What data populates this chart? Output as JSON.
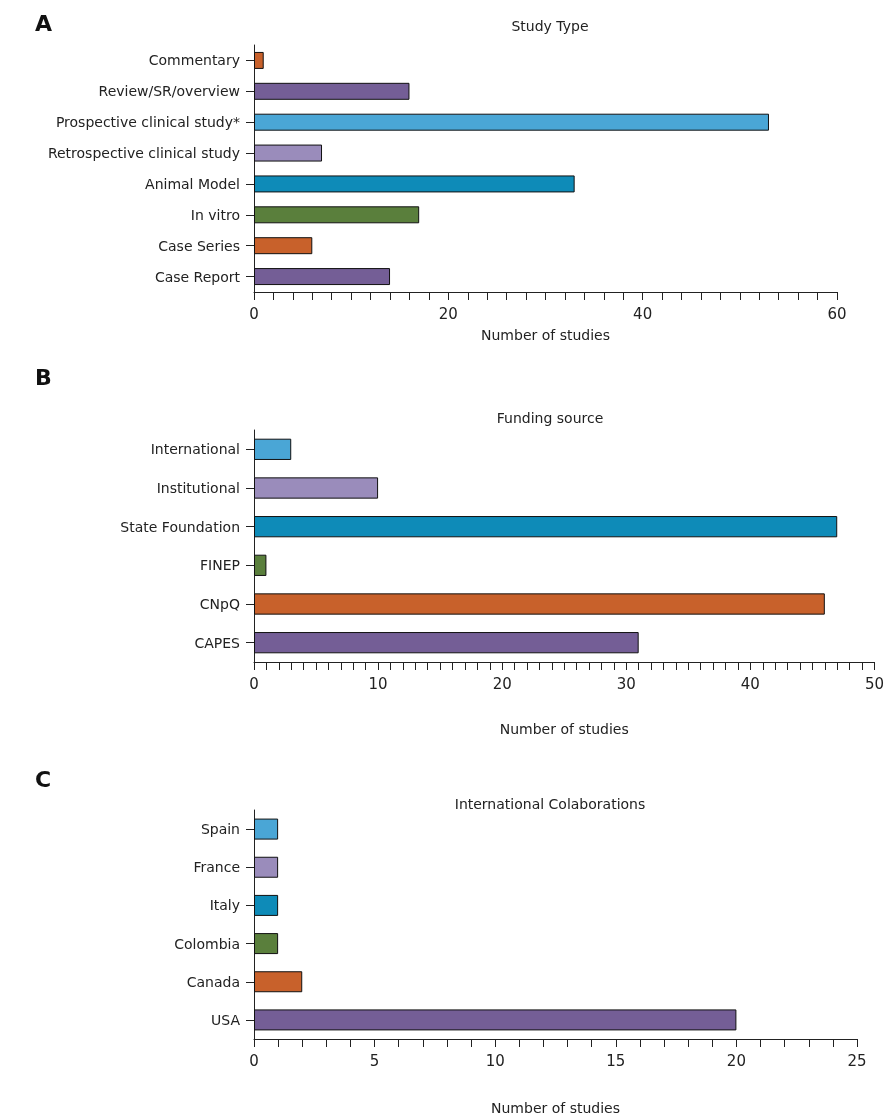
{
  "chart_data": [
    {
      "type": "bar",
      "orientation": "horizontal",
      "title": "Study Type",
      "xlabel": "Number of studies",
      "annotations": [
        "A"
      ],
      "categories": [
        "Commentary",
        "Review/SR/overview",
        "Prospective clinical study*",
        "Retrospective clinical study",
        "Animal Model",
        "In vitro",
        "Case Series",
        "Case Report"
      ],
      "values": [
        1,
        16,
        53,
        7,
        33,
        17,
        6,
        14
      ],
      "colors": [
        "#c8612b",
        "#745e96",
        "#4aa6d6",
        "#9a8cbb",
        "#0e8bb8",
        "#5a7f3c",
        "#c8612b",
        "#745e96"
      ],
      "xlim": [
        0,
        60
      ],
      "xticks": [
        0,
        {
          "value": 2,
          "label": null
        },
        {
          "value": 4,
          "label": null
        },
        {
          "value": 6,
          "label": null
        },
        {
          "value": 8,
          "label": null
        },
        {
          "value": 10,
          "label": null
        },
        {
          "value": 12,
          "label": null
        },
        {
          "value": 14,
          "label": null
        },
        {
          "value": 16,
          "label": null
        },
        {
          "value": 18,
          "label": null
        },
        20,
        {
          "value": 22,
          "label": null
        },
        {
          "value": 24,
          "label": null
        },
        {
          "value": 26,
          "label": null
        },
        {
          "value": 28,
          "label": null
        },
        {
          "value": 30,
          "label": null
        },
        {
          "value": 32,
          "label": null
        },
        {
          "value": 34,
          "label": null
        },
        {
          "value": 36,
          "label": null
        },
        {
          "value": 38,
          "label": null
        },
        40,
        {
          "value": 42,
          "label": null
        },
        {
          "value": 44,
          "label": null
        },
        {
          "value": 46,
          "label": null
        },
        {
          "value": 48,
          "label": null
        },
        {
          "value": 50,
          "label": null
        },
        {
          "value": 52,
          "label": null
        },
        {
          "value": 54,
          "label": null
        },
        {
          "value": 56,
          "label": null
        },
        {
          "value": 58,
          "label": null
        },
        60
      ],
      "grid": false
    },
    {
      "type": "bar",
      "orientation": "horizontal",
      "title": "Funding source",
      "xlabel": "Number of studies",
      "annotations": [
        "B"
      ],
      "categories": [
        "International",
        "Institutional",
        "State Foundation",
        "FINEP",
        "CNpQ",
        "CAPES"
      ],
      "values": [
        3,
        10,
        47,
        1,
        46,
        31
      ],
      "colors": [
        "#4aa6d6",
        "#9a8cbb",
        "#0e8bb8",
        "#5a7f3c",
        "#c8612b",
        "#745e96"
      ],
      "xlim": [
        0,
        50
      ],
      "xticks": [
        0,
        {
          "value": 1,
          "label": null
        },
        {
          "value": 2,
          "label": null
        },
        {
          "value": 3,
          "label": null
        },
        {
          "value": 4,
          "label": null
        },
        {
          "value": 5,
          "label": null
        },
        {
          "value": 6,
          "label": null
        },
        {
          "value": 7,
          "label": null
        },
        {
          "value": 8,
          "label": null
        },
        {
          "value": 9,
          "label": null
        },
        10,
        {
          "value": 11,
          "label": null
        },
        {
          "value": 12,
          "label": null
        },
        {
          "value": 13,
          "label": null
        },
        {
          "value": 14,
          "label": null
        },
        {
          "value": 15,
          "label": null
        },
        {
          "value": 16,
          "label": null
        },
        {
          "value": 17,
          "label": null
        },
        {
          "value": 18,
          "label": null
        },
        {
          "value": 19,
          "label": null
        },
        20,
        {
          "value": 21,
          "label": null
        },
        {
          "value": 22,
          "label": null
        },
        {
          "value": 23,
          "label": null
        },
        {
          "value": 24,
          "label": null
        },
        {
          "value": 25,
          "label": null
        },
        {
          "value": 26,
          "label": null
        },
        {
          "value": 27,
          "label": null
        },
        {
          "value": 28,
          "label": null
        },
        {
          "value": 29,
          "label": null
        },
        30,
        {
          "value": 31,
          "label": null
        },
        {
          "value": 32,
          "label": null
        },
        {
          "value": 33,
          "label": null
        },
        {
          "value": 34,
          "label": null
        },
        {
          "value": 35,
          "label": null
        },
        {
          "value": 36,
          "label": null
        },
        {
          "value": 37,
          "label": null
        },
        {
          "value": 38,
          "label": null
        },
        {
          "value": 39,
          "label": null
        },
        40,
        {
          "value": 41,
          "label": null
        },
        {
          "value": 42,
          "label": null
        },
        {
          "value": 43,
          "label": null
        },
        {
          "value": 44,
          "label": null
        },
        {
          "value": 45,
          "label": null
        },
        {
          "value": 46,
          "label": null
        },
        {
          "value": 47,
          "label": null
        },
        {
          "value": 48,
          "label": null
        },
        {
          "value": 49,
          "label": null
        },
        50
      ],
      "grid": false
    },
    {
      "type": "bar",
      "orientation": "horizontal",
      "title": "International Colaborations",
      "xlabel": "Number of studies",
      "annotations": [
        "C"
      ],
      "categories": [
        "Spain",
        "France",
        "Italy",
        "Colombia",
        "Canada",
        "USA"
      ],
      "values": [
        1,
        1,
        1,
        1,
        2,
        20
      ],
      "colors": [
        "#4aa6d6",
        "#9a8cbb",
        "#0e8bb8",
        "#5a7f3c",
        "#c8612b",
        "#745e96"
      ],
      "xlim": [
        0,
        25
      ],
      "xticks": [
        0,
        {
          "value": 1,
          "label": null
        },
        {
          "value": 2,
          "label": null
        },
        {
          "value": 3,
          "label": null
        },
        {
          "value": 4,
          "label": null
        },
        5,
        {
          "value": 6,
          "label": null
        },
        {
          "value": 7,
          "label": null
        },
        {
          "value": 8,
          "label": null
        },
        {
          "value": 9,
          "label": null
        },
        10,
        {
          "value": 11,
          "label": null
        },
        {
          "value": 12,
          "label": null
        },
        {
          "value": 13,
          "label": null
        },
        {
          "value": 14,
          "label": null
        },
        15,
        {
          "value": 16,
          "label": null
        },
        {
          "value": 17,
          "label": null
        },
        {
          "value": 18,
          "label": null
        },
        {
          "value": 19,
          "label": null
        },
        20,
        {
          "value": 21,
          "label": null
        },
        {
          "value": 22,
          "label": null
        },
        {
          "value": 23,
          "label": null
        },
        {
          "value": 24,
          "label": null
        },
        25
      ],
      "grid": false
    }
  ]
}
